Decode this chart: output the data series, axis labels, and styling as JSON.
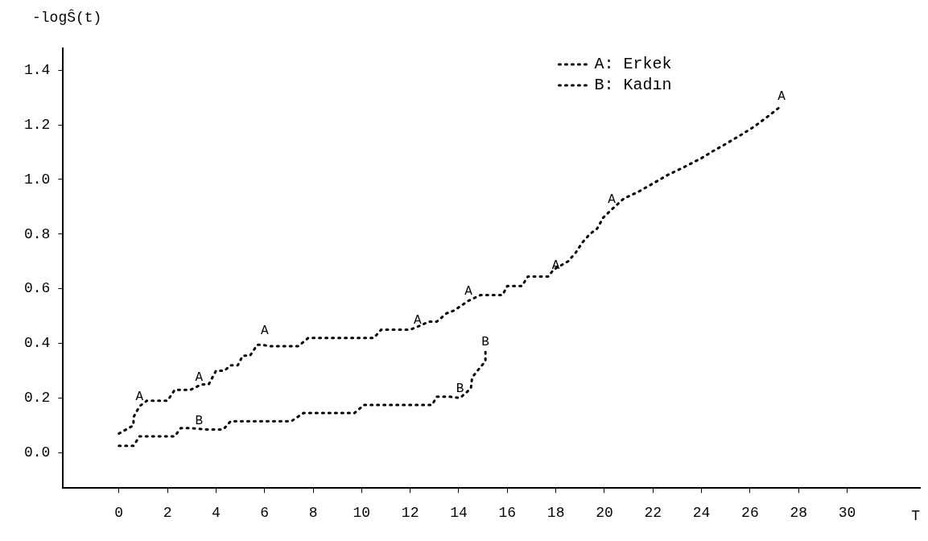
{
  "chart_data": {
    "type": "line",
    "ylabel": "-logŜ(t)",
    "xlabel": "T",
    "legend": "top right",
    "grid": false,
    "marker": "none",
    "line_style": "dotted",
    "xlim": [
      -2.3,
      33
    ],
    "xticks": [
      0,
      2,
      4,
      6,
      8,
      10,
      12,
      14,
      16,
      18,
      20,
      22,
      24,
      26,
      28,
      30
    ],
    "ylim": [
      -0.13,
      1.48
    ],
    "yticks": [
      {
        "value": 0,
        "label": "0.0"
      },
      {
        "value": 0.2,
        "label": "0.2"
      },
      {
        "value": 0.4,
        "label": "0.4"
      },
      {
        "value": 0.6,
        "label": "0.6"
      },
      {
        "value": 0.8,
        "label": "0.8"
      },
      {
        "value": 1.0,
        "label": "1.0"
      },
      {
        "value": 1.2,
        "label": "1.2"
      },
      {
        "value": 1.4,
        "label": "1.4"
      }
    ],
    "series": [
      {
        "name": "A: Erkek",
        "color": "#000000",
        "x": [
          0,
          0.6,
          0.6,
          0.85,
          1.15,
          2.0,
          2.3,
          2.95,
          3.4,
          3.7,
          4.0,
          4.35,
          4.6,
          4.9,
          5.1,
          5.4,
          5.7,
          5.9,
          6.2,
          7.4,
          7.8,
          10.5,
          10.8,
          12.0,
          12.8,
          13.1,
          13.5,
          13.8,
          14.4,
          14.9,
          15.8,
          16.0,
          16.6,
          16.85,
          17.7,
          17.9,
          18.5,
          18.8,
          19.1,
          19.4,
          19.7,
          19.95,
          20.3,
          20.8,
          21.4,
          22.0,
          22.6,
          23.3,
          24.0,
          24.5,
          25.0,
          25.7,
          26.2,
          26.8,
          27.3
        ],
        "values": [
          0.07,
          0.1,
          0.13,
          0.17,
          0.19,
          0.19,
          0.23,
          0.23,
          0.25,
          0.25,
          0.3,
          0.3,
          0.32,
          0.32,
          0.355,
          0.355,
          0.395,
          0.395,
          0.39,
          0.39,
          0.42,
          0.42,
          0.45,
          0.45,
          0.48,
          0.48,
          0.51,
          0.52,
          0.556,
          0.577,
          0.577,
          0.61,
          0.61,
          0.645,
          0.645,
          0.67,
          0.7,
          0.73,
          0.77,
          0.8,
          0.82,
          0.86,
          0.89,
          0.93,
          0.955,
          0.985,
          1.016,
          1.046,
          1.078,
          1.105,
          1.13,
          1.167,
          1.195,
          1.235,
          1.27
        ]
      },
      {
        "name": "B: Kadın",
        "color": "#000000",
        "x": [
          0,
          0.6,
          0.85,
          2.3,
          2.55,
          2.9,
          3.6,
          4.3,
          4.6,
          7.1,
          7.6,
          9.7,
          10.1,
          12.9,
          13.1,
          13.6,
          14.05,
          14.5,
          14.55,
          14.8,
          15.1,
          15.1
        ],
        "values": [
          0.025,
          0.025,
          0.06,
          0.06,
          0.09,
          0.09,
          0.085,
          0.085,
          0.115,
          0.115,
          0.145,
          0.145,
          0.175,
          0.175,
          0.205,
          0.205,
          0.2,
          0.235,
          0.275,
          0.303,
          0.335,
          0.37
        ]
      }
    ],
    "annotations": [
      {
        "text": "A",
        "x": 0.85,
        "y": 0.17
      },
      {
        "text": "A",
        "x": 3.3,
        "y": 0.24
      },
      {
        "text": "A",
        "x": 6,
        "y": 0.41
      },
      {
        "text": "A",
        "x": 12.3,
        "y": 0.45
      },
      {
        "text": "A",
        "x": 14.4,
        "y": 0.556
      },
      {
        "text": "A",
        "x": 18,
        "y": 0.65
      },
      {
        "text": "A",
        "x": 20.3,
        "y": 0.89
      },
      {
        "text": "A",
        "x": 27.3,
        "y": 1.27
      },
      {
        "text": "B",
        "x": 3.3,
        "y": 0.08
      },
      {
        "text": "B",
        "x": 14.05,
        "y": 0.2
      },
      {
        "text": "B",
        "x": 15.1,
        "y": 0.37
      }
    ]
  }
}
